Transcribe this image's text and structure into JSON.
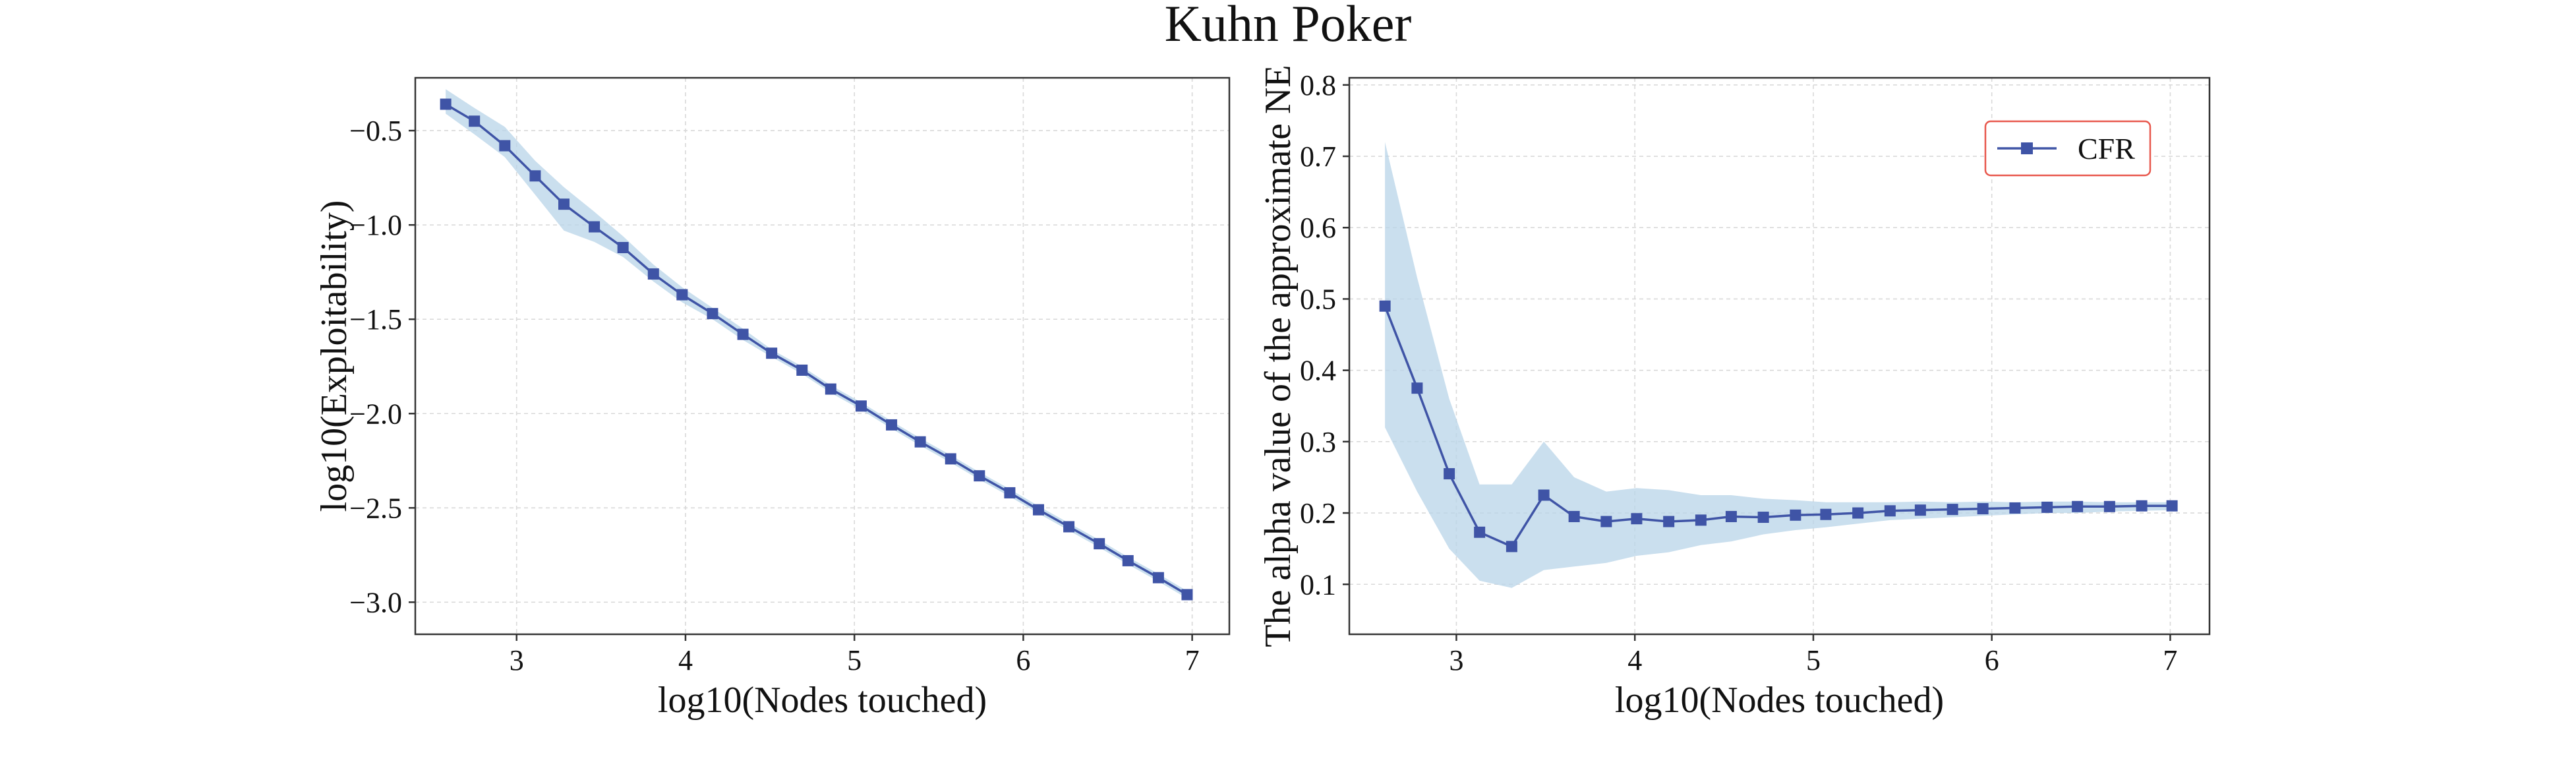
{
  "figure": {
    "title": "Kuhn Poker"
  },
  "colors": {
    "line": "#3f54a6",
    "band": "#b8d4e8",
    "legend_border": "#e8574c"
  },
  "chart_data": [
    {
      "type": "line",
      "title": "",
      "xlabel": "log10(Nodes touched)",
      "ylabel": "log10(Exploitability)",
      "xlim": [
        2.4,
        7.22
      ],
      "ylim": [
        -3.17,
        -0.22
      ],
      "xticks": [
        3,
        4,
        5,
        6,
        7
      ],
      "yticks": [
        -0.5,
        -1.0,
        -1.5,
        -2.0,
        -2.5,
        -3.0
      ],
      "xtick_labels": [
        "3",
        "4",
        "5",
        "6",
        "7"
      ],
      "ytick_labels": [
        "−0.5",
        "−1.0",
        "−1.5",
        "−2.0",
        "−2.5",
        "−3.0"
      ],
      "grid": true,
      "legend": "none",
      "series": [
        {
          "x": [
            2.58,
            2.75,
            2.93,
            3.11,
            3.28,
            3.46,
            3.63,
            3.81,
            3.98,
            4.16,
            4.34,
            4.51,
            4.69,
            4.86,
            5.04,
            5.22,
            5.39,
            5.57,
            5.74,
            5.92,
            6.09,
            6.27,
            6.45,
            6.62,
            6.8,
            6.97
          ],
          "y": [
            -0.36,
            -0.45,
            -0.58,
            -0.74,
            -0.89,
            -1.01,
            -1.12,
            -1.26,
            -1.37,
            -1.47,
            -1.58,
            -1.68,
            -1.77,
            -1.87,
            -1.96,
            -2.06,
            -2.15,
            -2.24,
            -2.33,
            -2.42,
            -2.51,
            -2.6,
            -2.69,
            -2.78,
            -2.87,
            -2.96
          ],
          "lower": [
            -0.41,
            -0.52,
            -0.64,
            -0.84,
            -1.03,
            -1.09,
            -1.17,
            -1.3,
            -1.41,
            -1.5,
            -1.61,
            -1.7,
            -1.79,
            -1.89,
            -1.98,
            -2.08,
            -2.17,
            -2.26,
            -2.35,
            -2.44,
            -2.53,
            -2.62,
            -2.71,
            -2.8,
            -2.89,
            -2.98
          ],
          "upper": [
            -0.28,
            -0.38,
            -0.48,
            -0.66,
            -0.8,
            -0.93,
            -1.06,
            -1.21,
            -1.33,
            -1.44,
            -1.55,
            -1.66,
            -1.75,
            -1.85,
            -1.94,
            -2.04,
            -2.13,
            -2.22,
            -2.31,
            -2.4,
            -2.49,
            -2.58,
            -2.67,
            -2.76,
            -2.85,
            -2.94
          ]
        }
      ]
    },
    {
      "type": "line",
      "title": "",
      "xlabel": "log10(Nodes touched)",
      "ylabel": "The alpha value of the approximate NE",
      "xlim": [
        2.4,
        7.22
      ],
      "ylim": [
        0.03,
        0.81
      ],
      "xticks": [
        3,
        4,
        5,
        6,
        7
      ],
      "yticks": [
        0.1,
        0.2,
        0.3,
        0.4,
        0.5,
        0.6,
        0.7,
        0.8
      ],
      "xtick_labels": [
        "3",
        "4",
        "5",
        "6",
        "7"
      ],
      "ytick_labels": [
        "0.1",
        "0.2",
        "0.3",
        "0.4",
        "0.5",
        "0.6",
        "0.7",
        "0.8"
      ],
      "grid": true,
      "legend": "upper-right",
      "series": [
        {
          "name": "CFR",
          "x": [
            2.6,
            2.78,
            2.96,
            3.13,
            3.31,
            3.49,
            3.66,
            3.84,
            4.01,
            4.19,
            4.37,
            4.54,
            4.72,
            4.9,
            5.07,
            5.25,
            5.43,
            5.6,
            5.78,
            5.95,
            6.13,
            6.31,
            6.48,
            6.66,
            6.84,
            7.01
          ],
          "y": [
            0.49,
            0.375,
            0.255,
            0.173,
            0.153,
            0.225,
            0.195,
            0.188,
            0.192,
            0.188,
            0.19,
            0.195,
            0.194,
            0.197,
            0.198,
            0.2,
            0.203,
            0.204,
            0.205,
            0.206,
            0.207,
            0.208,
            0.209,
            0.209,
            0.21,
            0.21
          ],
          "lower": [
            0.32,
            0.23,
            0.15,
            0.105,
            0.095,
            0.12,
            0.125,
            0.13,
            0.14,
            0.145,
            0.155,
            0.16,
            0.17,
            0.176,
            0.18,
            0.185,
            0.19,
            0.192,
            0.194,
            0.196,
            0.198,
            0.2,
            0.2,
            0.202,
            0.203,
            0.204
          ],
          "upper": [
            0.72,
            0.53,
            0.36,
            0.24,
            0.24,
            0.3,
            0.25,
            0.23,
            0.235,
            0.232,
            0.225,
            0.225,
            0.22,
            0.218,
            0.215,
            0.215,
            0.215,
            0.216,
            0.215,
            0.216,
            0.215,
            0.216,
            0.216,
            0.215,
            0.215,
            0.215
          ]
        }
      ]
    }
  ]
}
